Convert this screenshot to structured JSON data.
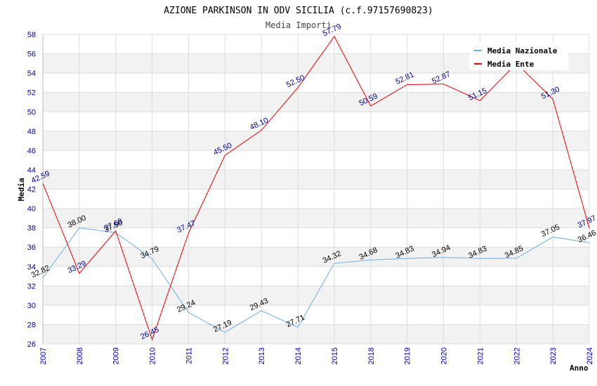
{
  "chart_data": {
    "type": "line",
    "title": "AZIONE PARKINSON IN ODV SICILIA (c.f.97157690823)",
    "subtitle": "Media Importi",
    "xlabel": "Anno",
    "ylabel": "Media",
    "ylim": [
      26,
      58
    ],
    "ytick_step": 2,
    "grid": true,
    "legend_position": "top-right",
    "categories": [
      "2007",
      "2008",
      "2009",
      "2010",
      "2011",
      "2012",
      "2013",
      "2014",
      "2015",
      "2018",
      "2019",
      "2020",
      "2021",
      "2022",
      "2023",
      "2024"
    ],
    "series": [
      {
        "name": "Media Nazionale",
        "color": "#6aaee6",
        "label_color": "#000000",
        "values": [
          32.82,
          38.0,
          37.5,
          34.79,
          29.24,
          27.19,
          29.43,
          27.71,
          34.32,
          34.68,
          34.83,
          34.94,
          34.83,
          34.85,
          37.05,
          36.46
        ],
        "labels": [
          "32.82",
          "38.00",
          "37.50",
          "34.79",
          "29.24",
          "27.19",
          "29.43",
          "27.71",
          "34.32",
          "34.68",
          "34.83",
          "34.94",
          "34.83",
          "34.85",
          "37.05",
          "36.46"
        ]
      },
      {
        "name": "Media Ente",
        "color": "#ee0000",
        "label_color": "#00008b",
        "values": [
          42.59,
          33.29,
          37.68,
          26.45,
          37.47,
          45.5,
          48.1,
          52.5,
          57.79,
          50.59,
          52.81,
          52.87,
          51.15,
          55.0,
          51.3,
          37.97
        ],
        "labels": [
          "42.59",
          "33.29",
          "37.68",
          "26.45",
          "37.47",
          "45.50",
          "48.10",
          "52.50",
          "57.79",
          "50.59",
          "52.81",
          "52.87",
          "51.15",
          "",
          "51.30",
          "37.97"
        ]
      }
    ]
  }
}
